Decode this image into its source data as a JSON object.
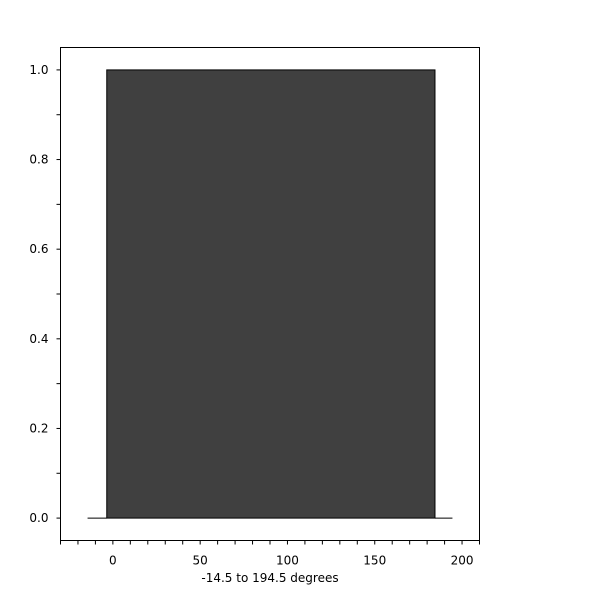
{
  "chart_data": {
    "type": "bar",
    "title": "",
    "xlabel": "-14.5 to 194.5 degrees",
    "ylabel": "",
    "xlim": [
      -30,
      210
    ],
    "ylim": [
      -0.05,
      1.05
    ],
    "x_ticks": [
      0,
      50,
      100,
      150,
      200
    ],
    "x_tick_labels": [
      "0",
      "50",
      "100",
      "150",
      "200"
    ],
    "x_minor_step": 10,
    "y_ticks": [
      0.0,
      0.2,
      0.4,
      0.6,
      0.8,
      1.0
    ],
    "y_tick_labels": [
      "0.0",
      "0.2",
      "0.4",
      "0.6",
      "0.8",
      "1.0"
    ],
    "y_minor_step": 0.1,
    "grid": false,
    "bars": [
      {
        "x0": -3.5,
        "x1": 184.5,
        "value": 1.0
      }
    ],
    "baseline_segments": [
      [
        -14.5,
        -3.5
      ],
      [
        184.5,
        194.5
      ]
    ],
    "colors": {
      "bar_fill": "#404040",
      "bar_edge": "#000000"
    }
  }
}
